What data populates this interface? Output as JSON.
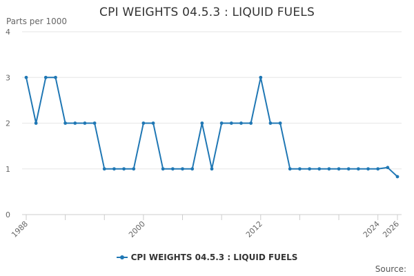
{
  "colors": {
    "series": "#1f77b4",
    "grid": "#e6e6e6",
    "axis": "#cccccc",
    "text": "#666666"
  },
  "chart_data": {
    "type": "line",
    "title": "CPI WEIGHTS 04.5.3 : LIQUID FUELS",
    "ylabel": "Parts per 1000",
    "xlabel": "",
    "ylim": [
      0,
      4
    ],
    "xlim": [
      1988,
      2026
    ],
    "yticks": [
      "0",
      "1",
      "2",
      "3",
      "4"
    ],
    "xtick_labels": [
      "1988",
      "2000",
      "2012",
      "2024",
      "2026"
    ],
    "grid": true,
    "legend_position": "bottom",
    "series": [
      {
        "name": "CPI WEIGHTS 04.5.3 : LIQUID FUELS",
        "x": [
          1988,
          1989,
          1990,
          1991,
          1992,
          1993,
          1994,
          1995,
          1996,
          1997,
          1998,
          1999,
          2000,
          2001,
          2002,
          2003,
          2004,
          2005,
          2006,
          2007,
          2008,
          2009,
          2010,
          2011,
          2012,
          2013,
          2014,
          2015,
          2016,
          2017,
          2018,
          2019,
          2020,
          2021,
          2022,
          2023,
          2024,
          2025,
          2026
        ],
        "values": [
          3,
          2,
          3,
          3,
          2,
          2,
          2,
          2,
          1,
          1,
          1,
          1,
          2,
          2,
          1,
          1,
          1,
          1,
          2,
          1,
          2,
          2,
          2,
          2,
          3,
          2,
          2,
          1,
          1,
          1,
          1,
          1,
          1,
          1,
          1,
          1,
          1,
          1.03,
          0.83
        ]
      }
    ]
  },
  "legend": {
    "label": "CPI WEIGHTS 04.5.3 : LIQUID FUELS"
  },
  "source": {
    "label": "Source:"
  }
}
